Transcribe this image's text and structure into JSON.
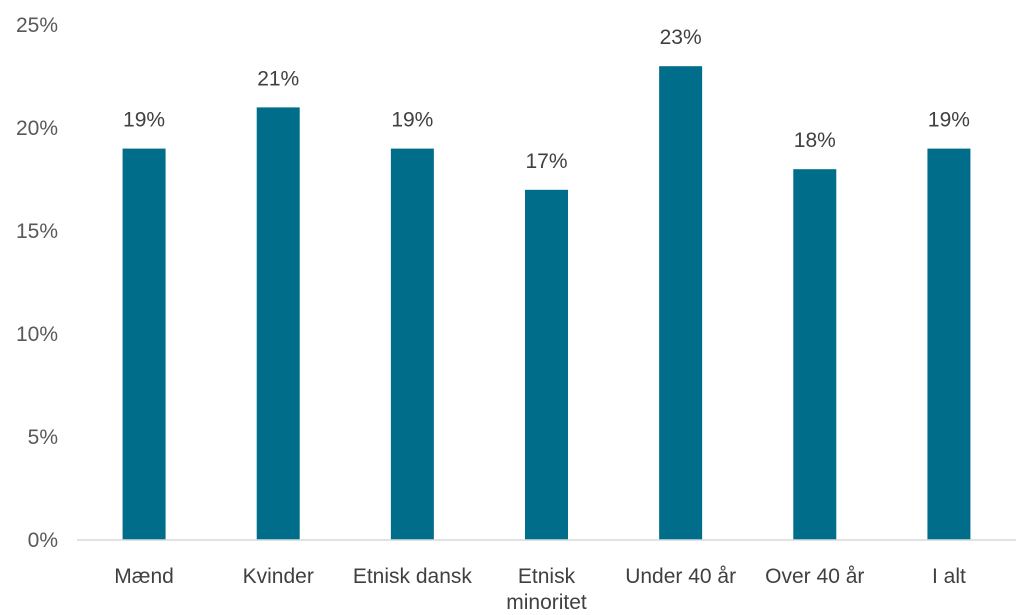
{
  "chart_data": {
    "type": "bar",
    "categories": [
      [
        "Mænd"
      ],
      [
        "Kvinder"
      ],
      [
        "Etnisk dansk"
      ],
      [
        "Etnisk",
        "minoritet"
      ],
      [
        "Under 40 år"
      ],
      [
        "Over 40 år"
      ],
      [
        "I alt"
      ]
    ],
    "values": [
      19,
      21,
      19,
      17,
      23,
      18,
      19
    ],
    "data_labels": [
      "19%",
      "21%",
      "19%",
      "17%",
      "23%",
      "18%",
      "19%"
    ],
    "y_ticks": [
      {
        "value": 0,
        "label": "0%"
      },
      {
        "value": 5,
        "label": "5%"
      },
      {
        "value": 10,
        "label": "10%"
      },
      {
        "value": 15,
        "label": "15%"
      },
      {
        "value": 20,
        "label": "20%"
      },
      {
        "value": 25,
        "label": "25%"
      }
    ],
    "ylim": [
      0,
      25
    ],
    "title": "",
    "xlabel": "",
    "ylabel": "",
    "grid": false,
    "legend": "none",
    "bar_color": "#006e8a",
    "axis_color": "#d9d9d9"
  }
}
